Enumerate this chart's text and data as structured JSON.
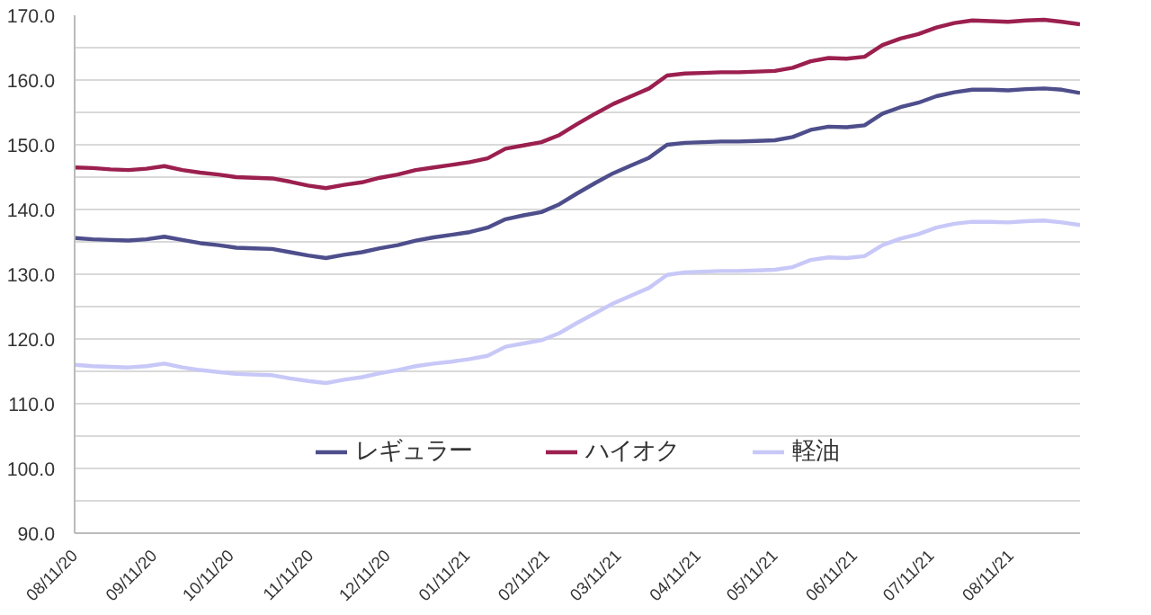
{
  "chart_data": {
    "type": "line",
    "x": [
      "2020-08-11",
      "2020-08-18",
      "2020-08-25",
      "2020-09-01",
      "2020-09-08",
      "2020-09-15",
      "2020-09-22",
      "2020-09-29",
      "2020-10-06",
      "2020-10-13",
      "2020-10-20",
      "2020-10-27",
      "2020-11-03",
      "2020-11-10",
      "2020-11-17",
      "2020-11-24",
      "2020-12-01",
      "2020-12-08",
      "2020-12-15",
      "2020-12-22",
      "2020-12-29",
      "2021-01-05",
      "2021-01-12",
      "2021-01-19",
      "2021-01-26",
      "2021-02-02",
      "2021-02-09",
      "2021-02-16",
      "2021-02-23",
      "2021-03-02",
      "2021-03-09",
      "2021-03-16",
      "2021-03-23",
      "2021-03-30",
      "2021-04-06",
      "2021-04-13",
      "2021-04-20",
      "2021-04-27",
      "2021-05-04",
      "2021-05-11",
      "2021-05-18",
      "2021-05-25",
      "2021-06-01",
      "2021-06-08",
      "2021-06-15",
      "2021-06-22",
      "2021-06-29",
      "2021-07-06",
      "2021-07-13",
      "2021-07-20",
      "2021-07-27",
      "2021-08-03",
      "2021-08-10",
      "2021-08-17",
      "2021-08-24",
      "2021-08-31",
      "2021-09-07"
    ],
    "series": [
      {
        "name": "レギュラー",
        "color": "#4e4e8c",
        "values": [
          135.6,
          135.4,
          135.3,
          135.2,
          135.4,
          135.8,
          135.3,
          134.8,
          134.5,
          134.1,
          134.0,
          133.9,
          133.4,
          132.9,
          132.5,
          133.0,
          133.4,
          134.0,
          134.5,
          135.2,
          135.7,
          136.1,
          136.5,
          137.2,
          138.5,
          139.1,
          139.6,
          140.8,
          142.5,
          144.1,
          145.6,
          146.8,
          148.0,
          150.0,
          150.3,
          150.4,
          150.5,
          150.5,
          150.6,
          150.7,
          151.2,
          152.3,
          152.8,
          152.7,
          153.0,
          154.8,
          155.8,
          156.5,
          157.5,
          158.1,
          158.5,
          158.5,
          158.4,
          158.6,
          158.7,
          158.5,
          158.0
        ]
      },
      {
        "name": "ハイオク",
        "color": "#9b1f4f",
        "values": [
          146.5,
          146.4,
          146.2,
          146.1,
          146.3,
          146.7,
          146.1,
          145.7,
          145.4,
          145.0,
          144.9,
          144.8,
          144.3,
          143.7,
          143.3,
          143.8,
          144.2,
          144.9,
          145.4,
          146.1,
          146.5,
          146.9,
          147.3,
          147.9,
          149.4,
          149.9,
          150.4,
          151.5,
          153.2,
          154.8,
          156.3,
          157.5,
          158.7,
          160.7,
          161.0,
          161.1,
          161.2,
          161.2,
          161.3,
          161.4,
          161.9,
          162.9,
          163.4,
          163.3,
          163.6,
          165.4,
          166.4,
          167.1,
          168.1,
          168.8,
          169.2,
          169.1,
          169.0,
          169.2,
          169.3,
          169.0,
          168.6
        ]
      },
      {
        "name": "軽油",
        "color": "#c8c8f8",
        "values": [
          116.0,
          115.8,
          115.7,
          115.6,
          115.8,
          116.2,
          115.6,
          115.2,
          114.9,
          114.6,
          114.5,
          114.4,
          113.9,
          113.5,
          113.2,
          113.7,
          114.1,
          114.7,
          115.2,
          115.8,
          116.2,
          116.5,
          116.9,
          117.4,
          118.8,
          119.3,
          119.8,
          120.9,
          122.5,
          124.0,
          125.5,
          126.7,
          127.9,
          129.9,
          130.3,
          130.4,
          130.5,
          130.5,
          130.6,
          130.7,
          131.1,
          132.2,
          132.6,
          132.5,
          132.8,
          134.5,
          135.5,
          136.2,
          137.2,
          137.8,
          138.1,
          138.1,
          138.0,
          138.2,
          138.3,
          138.0,
          137.6
        ]
      }
    ],
    "xlim": [
      "2020-08-11",
      "2021-09-07"
    ],
    "xticks": [
      {
        "value": "2020-08-11",
        "label": "08/11/20"
      },
      {
        "value": "2020-09-11",
        "label": "09/11/20"
      },
      {
        "value": "2020-10-11",
        "label": "10/11/20"
      },
      {
        "value": "2020-11-11",
        "label": "11/11/20"
      },
      {
        "value": "2020-12-11",
        "label": "12/11/20"
      },
      {
        "value": "2021-01-11",
        "label": "01/11/21"
      },
      {
        "value": "2021-02-11",
        "label": "02/11/21"
      },
      {
        "value": "2021-03-11",
        "label": "03/11/21"
      },
      {
        "value": "2021-04-11",
        "label": "04/11/21"
      },
      {
        "value": "2021-05-11",
        "label": "05/11/21"
      },
      {
        "value": "2021-06-11",
        "label": "06/11/21"
      },
      {
        "value": "2021-07-11",
        "label": "07/11/21"
      },
      {
        "value": "2021-08-11",
        "label": "08/11/21"
      }
    ],
    "ylim": [
      90,
      170
    ],
    "yticks": [
      {
        "value": 90,
        "label": "90.0"
      },
      {
        "value": 95,
        "label": null
      },
      {
        "value": 100,
        "label": "100.0"
      },
      {
        "value": 105,
        "label": null
      },
      {
        "value": 110,
        "label": "110.0"
      },
      {
        "value": 115,
        "label": null
      },
      {
        "value": 120,
        "label": "120.0"
      },
      {
        "value": 125,
        "label": null
      },
      {
        "value": 130,
        "label": "130.0"
      },
      {
        "value": 135,
        "label": null
      },
      {
        "value": 140,
        "label": "140.0"
      },
      {
        "value": 145,
        "label": null
      },
      {
        "value": 150,
        "label": "150.0"
      },
      {
        "value": 155,
        "label": null
      },
      {
        "value": 160,
        "label": "160.0"
      },
      {
        "value": 165,
        "label": null
      },
      {
        "value": 170,
        "label": "170.0"
      }
    ],
    "grid": "y",
    "legend": "bottom",
    "marker": "none",
    "line_style": "solid"
  }
}
